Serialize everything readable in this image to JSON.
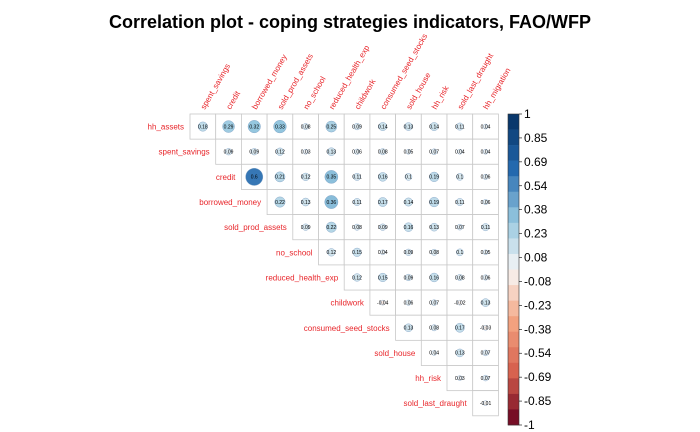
{
  "chart_data": {
    "type": "heatmap",
    "title": "Correlation plot - coping strategies indicators, FAO/WFP",
    "variables": [
      "hh_assets",
      "spent_savings",
      "credit",
      "borrowed_money",
      "sold_prod_assets",
      "no_school",
      "reduced_health_exp",
      "childwork",
      "consumed_seed_stocks",
      "sold_house",
      "hh_risk",
      "sold_last_draught",
      "hh_migration"
    ],
    "rows": [
      {
        "label": "hh_assets",
        "values": [
          0.18,
          0.29,
          0.32,
          0.33,
          0.08,
          0.25,
          0.09,
          0.14,
          0.13,
          0.14,
          0.11,
          0.04
        ]
      },
      {
        "label": "spent_savings",
        "values": [
          0.09,
          0.09,
          0.12,
          0.03,
          0.13,
          0.06,
          0.08,
          0.05,
          0.07,
          0.04,
          0.04
        ]
      },
      {
        "label": "credit",
        "values": [
          0.6,
          0.21,
          0.12,
          0.35,
          0.11,
          0.16,
          0.1,
          0.19,
          0.1,
          0.06
        ]
      },
      {
        "label": "borrowed_money",
        "values": [
          0.22,
          0.13,
          0.36,
          0.11,
          0.17,
          0.14,
          0.19,
          0.11,
          0.06
        ]
      },
      {
        "label": "sold_prod_assets",
        "values": [
          0.09,
          0.22,
          0.08,
          0.09,
          0.16,
          0.13,
          0.07,
          0.11
        ]
      },
      {
        "label": "no_school",
        "values": [
          0.12,
          0.15,
          0.04,
          0.09,
          0.08,
          0.1,
          0.05
        ]
      },
      {
        "label": "reduced_health_exp",
        "values": [
          0.12,
          0.15,
          0.09,
          0.16,
          0.08,
          0.06
        ]
      },
      {
        "label": "childwork",
        "values": [
          -0.04,
          0.06,
          0.07,
          -0.02,
          0.13
        ]
      },
      {
        "label": "consumed_seed_stocks",
        "values": [
          0.13,
          0.08,
          0.17,
          -0.03
        ]
      },
      {
        "label": "sold_house",
        "values": [
          0.04,
          0.13,
          0.07
        ]
      },
      {
        "label": "hh_risk",
        "values": [
          0.03,
          0.07
        ]
      },
      {
        "label": "sold_last_draught",
        "values": [
          -0.01
        ]
      }
    ],
    "colorbar": {
      "ticks": [
        "1",
        "0.85",
        "0.69",
        "0.54",
        "0.38",
        "0.23",
        "0.08",
        "-0.08",
        "-0.23",
        "-0.38",
        "-0.54",
        "-0.69",
        "-0.85",
        "-1"
      ],
      "range": [
        -1,
        1
      ]
    },
    "colors": {
      "label": "#e8262b",
      "positive_strong": "#053061",
      "positive_mid": "#2166ac",
      "positive_light": "#92c5de",
      "neutral": "#f7f7f7",
      "negative_light": "#f4a582",
      "negative_mid": "#d6604d",
      "negative_strong": "#67001f"
    }
  }
}
